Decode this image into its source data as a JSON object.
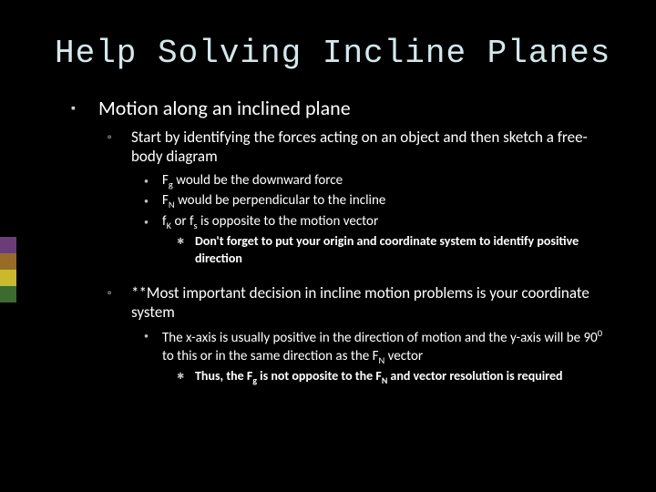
{
  "title": "Help Solving Incline Planes",
  "stripes": [
    "#6a3c7a",
    "#966c28",
    "#cbb82c",
    "#3b6b2f"
  ],
  "bullets": {
    "l1": "Motion along an inclined plane",
    "l2a": "Start by identifying the forces acting on an object and then sketch a free-body diagram",
    "l3a_pre": "F",
    "l3a_sub": "g",
    "l3a_post": " would be the downward force",
    "l3b_pre": "F",
    "l3b_sub": "N",
    "l3b_post": " would be perpendicular to the incline",
    "l3c_pre": "f",
    "l3c_sub1": "K",
    "l3c_mid": " or f",
    "l3c_sub2": "s",
    "l3c_post": " is opposite to the motion vector",
    "l4a": "Don't forget to put your origin and coordinate system to identify positive direction",
    "l2b": "**Most important decision in incline motion problems is your coordinate system",
    "l3d_pre": "The x-axis is usually positive in the direction of motion and the y-axis will be 90",
    "l3d_sup": "0",
    "l3d_mid": " to this or in the same direction as the F",
    "l3d_sub": "N",
    "l3d_post": " vector",
    "l4b_pre": "Thus, the F",
    "l4b_sub1": "g",
    "l4b_mid": " is not opposite to the F",
    "l4b_sub2": "N",
    "l4b_post": " and vector resolution is required"
  }
}
